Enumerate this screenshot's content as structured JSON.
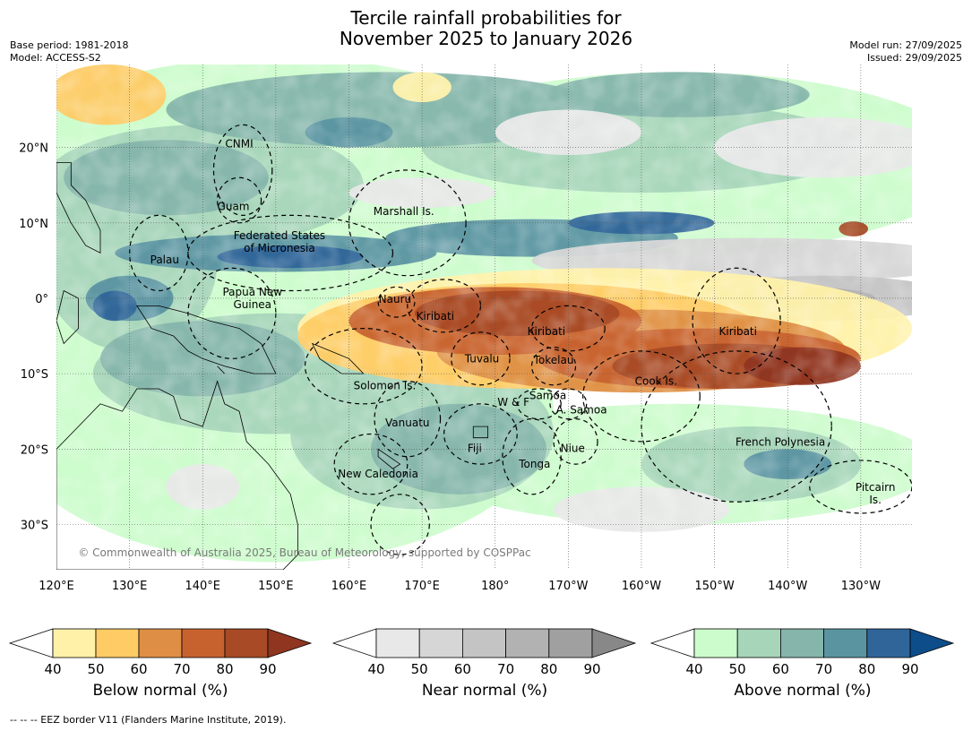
{
  "title": {
    "line1": "Tercile rainfall probabilities for",
    "line2": "November 2025 to January 2026"
  },
  "meta_left": {
    "base_period": "Base period: 1981-2018",
    "model": "Model: ACCESS-S2"
  },
  "meta_right": {
    "model_run": "Model run: 27/09/2025",
    "issued": "Issued: 29/09/2025"
  },
  "map": {
    "lon_range": [
      120,
      237
    ],
    "lat_range": [
      -36,
      31
    ],
    "x_ticks": [
      {
        "lon": 120,
        "label": "120°E"
      },
      {
        "lon": 130,
        "label": "130°E"
      },
      {
        "lon": 140,
        "label": "140°E"
      },
      {
        "lon": 150,
        "label": "150°E"
      },
      {
        "lon": 160,
        "label": "160°E"
      },
      {
        "lon": 170,
        "label": "170°E"
      },
      {
        "lon": 180,
        "label": "180°"
      },
      {
        "lon": 190,
        "label": "170°W"
      },
      {
        "lon": 200,
        "label": "160°W"
      },
      {
        "lon": 210,
        "label": "150°W"
      },
      {
        "lon": 220,
        "label": "140°W"
      },
      {
        "lon": 230,
        "label": "130°W"
      }
    ],
    "y_ticks": [
      {
        "lat": 20,
        "label": "20°N"
      },
      {
        "lat": 10,
        "label": "10°N"
      },
      {
        "lat": 0,
        "label": "0°"
      },
      {
        "lat": -10,
        "label": "10°S"
      },
      {
        "lat": -20,
        "label": "20°S"
      },
      {
        "lat": -30,
        "label": "30°S"
      }
    ],
    "regions": [
      {
        "lines": [
          "CNMI"
        ],
        "lon": 145.0,
        "lat": 20.5
      },
      {
        "lines": [
          "Guam"
        ],
        "lon": 144.2,
        "lat": 12.2
      },
      {
        "lines": [
          "Marshall Is."
        ],
        "lon": 167.5,
        "lat": 11.5
      },
      {
        "lines": [
          "Federated States",
          "of Micronesia"
        ],
        "lon": 150.5,
        "lat": 7.5
      },
      {
        "lines": [
          "Palau"
        ],
        "lon": 134.8,
        "lat": 5.1
      },
      {
        "lines": [
          "Papua New",
          "Guinea"
        ],
        "lon": 146.8,
        "lat": 0.0
      },
      {
        "lines": [
          "Nauru"
        ],
        "lon": 166.3,
        "lat": -0.1
      },
      {
        "lines": [
          "Kiribati"
        ],
        "lon": 171.8,
        "lat": -2.4
      },
      {
        "lines": [
          "Kiribati"
        ],
        "lon": 187.0,
        "lat": -4.4
      },
      {
        "lines": [
          "Kiribati"
        ],
        "lon": 213.2,
        "lat": -4.4
      },
      {
        "lines": [
          "Tuvalu"
        ],
        "lon": 178.2,
        "lat": -8.0
      },
      {
        "lines": [
          "Tokelau"
        ],
        "lon": 188.0,
        "lat": -8.2
      },
      {
        "lines": [
          "Cook Is."
        ],
        "lon": 202.0,
        "lat": -11.0
      },
      {
        "lines": [
          "Solomon Is."
        ],
        "lon": 164.9,
        "lat": -11.6
      },
      {
        "lines": [
          "Samoa"
        ],
        "lon": 187.2,
        "lat": -12.9
      },
      {
        "lines": [
          "W & F"
        ],
        "lon": 182.5,
        "lat": -13.8
      },
      {
        "lines": [
          "A. Samoa"
        ],
        "lon": 191.8,
        "lat": -14.8
      },
      {
        "lines": [
          "Vanuatu"
        ],
        "lon": 168.0,
        "lat": -16.5
      },
      {
        "lines": [
          "French Polynesia"
        ],
        "lon": 219.0,
        "lat": -19.1
      },
      {
        "lines": [
          "Fiji"
        ],
        "lon": 177.2,
        "lat": -19.9
      },
      {
        "lines": [
          "Niue"
        ],
        "lon": 190.6,
        "lat": -19.9
      },
      {
        "lines": [
          "Tonga"
        ],
        "lon": 185.4,
        "lat": -22.0
      },
      {
        "lines": [
          "New Caledonia"
        ],
        "lon": 164.0,
        "lat": -23.3
      },
      {
        "lines": [
          "Pitcairn",
          "Is."
        ],
        "lon": 232.0,
        "lat": -25.9
      }
    ],
    "copyright": "© Commonwealth of Australia 2025, Bureau of Meteorology, supported by COSPPac",
    "map_colors": {
      "below": [
        "#fff1a8",
        "#fecb65",
        "#de8f45",
        "#c7622f",
        "#a84a25",
        "#8f3520"
      ],
      "near": [
        "#e8e8e8",
        "#d6d6d6",
        "#c4c4c4",
        "#b2b2b2",
        "#a0a0a0",
        "#888888"
      ],
      "above": [
        "#ccfccc",
        "#a6d5b9",
        "#85b5ab",
        "#5a94a1",
        "#2f6599",
        "#0d4d89"
      ],
      "land_line": "#000000",
      "grid": "#555555"
    }
  },
  "colorbars": [
    {
      "label": "Below normal (%)",
      "colors": [
        "#fff1a8",
        "#fecb65",
        "#de8f45",
        "#c7622f",
        "#a84a25"
      ],
      "end_color": "#8f3520",
      "ticks": [
        "40",
        "50",
        "60",
        "70",
        "80",
        "90"
      ]
    },
    {
      "label": "Near normal (%)",
      "colors": [
        "#e8e8e8",
        "#d6d6d6",
        "#c4c4c4",
        "#b2b2b2",
        "#a0a0a0"
      ],
      "end_color": "#888888",
      "ticks": [
        "40",
        "50",
        "60",
        "70",
        "80",
        "90"
      ]
    },
    {
      "label": "Above normal (%)",
      "colors": [
        "#ccfccc",
        "#a6d5b9",
        "#85b5ab",
        "#5a94a1",
        "#2f6599"
      ],
      "end_color": "#0d4d89",
      "ticks": [
        "40",
        "50",
        "60",
        "70",
        "80",
        "90"
      ]
    }
  ],
  "footer": "--  --  -- EEZ border V11 (Flanders Marine Institute, 2019)."
}
